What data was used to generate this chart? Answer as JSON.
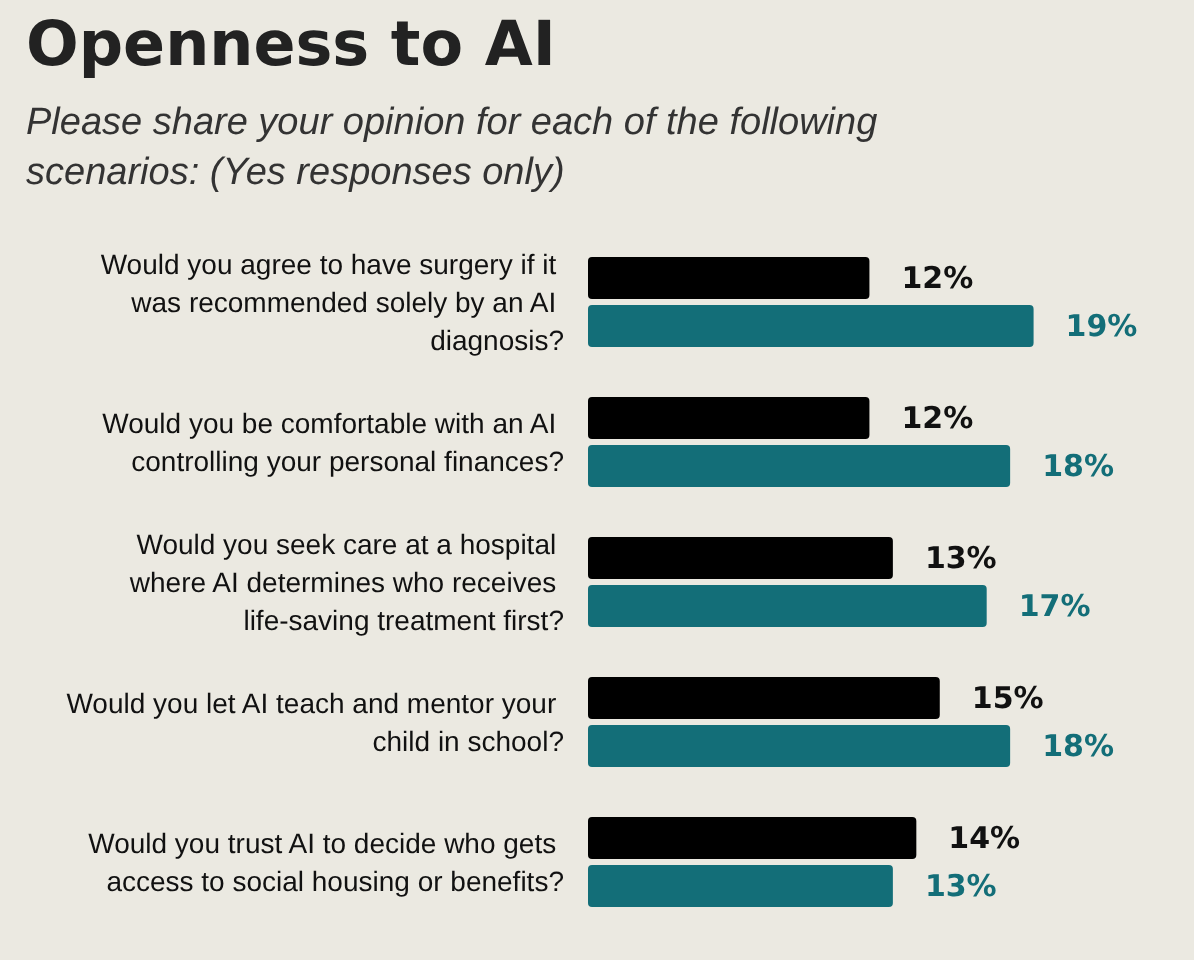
{
  "chart_data": {
    "type": "bar",
    "orientation": "horizontal",
    "title": "Openness to AI",
    "subtitle": "Please share your opinion for each of the following scenarios: (Yes responses only)",
    "categories": [
      "Would you agree to have surgery if it was recommended solely by an AI diagnosis?",
      "Would you be comfortable with an AI controlling your personal finances?",
      "Would you seek care at a hospital where AI determines who receives life-saving treatment first?",
      "Would you let AI teach and mentor your child in school?",
      "Would you trust AI to decide who gets access to social housing or benefits?"
    ],
    "series": [
      {
        "color": "#000000",
        "values": [
          12,
          12,
          13,
          15,
          14
        ],
        "value_labels": [
          "12%",
          "12%",
          "13%",
          "15%",
          "14%"
        ]
      },
      {
        "color": "#136e78",
        "values": [
          19,
          18,
          17,
          18,
          13
        ],
        "value_labels": [
          "19%",
          "18%",
          "17%",
          "18%",
          "13%"
        ]
      }
    ],
    "tick_labels": "y"
  }
}
